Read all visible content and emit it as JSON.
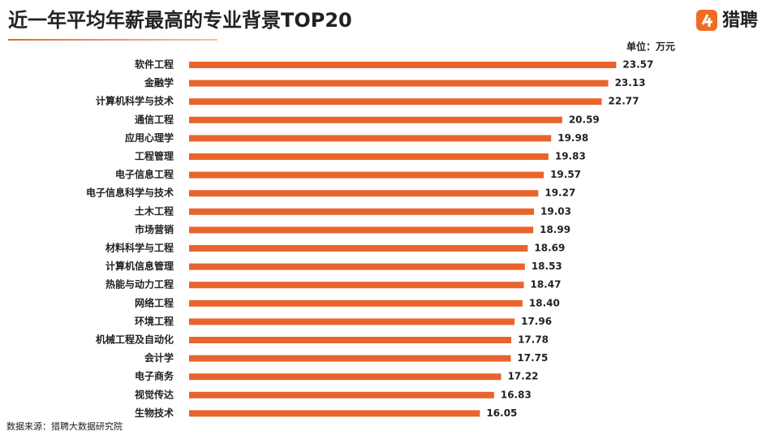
{
  "chart_data": {
    "type": "bar",
    "orientation": "horizontal",
    "title": "近一年平均年薪最高的专业背景TOP20",
    "brand": "猎聘",
    "unit": "单位：万元",
    "source": "数据来源：猎聘大数据研究院",
    "color": "#e8642c",
    "xlim": [
      0,
      24
    ],
    "categories": [
      "软件工程",
      "金融学",
      "计算机科学与技术",
      "通信工程",
      "应用心理学",
      "工程管理",
      "电子信息工程",
      "电子信息科学与技术",
      "土木工程",
      "市场营销",
      "材料科学与工程",
      "计算机信息管理",
      "热能与动力工程",
      "网络工程",
      "环境工程",
      "机械工程及自动化",
      "会计学",
      "电子商务",
      "视觉传达",
      "生物技术"
    ],
    "values": [
      23.57,
      23.13,
      22.77,
      20.59,
      19.98,
      19.83,
      19.57,
      19.27,
      19.03,
      18.99,
      18.69,
      18.53,
      18.47,
      18.4,
      17.96,
      17.78,
      17.75,
      17.22,
      16.83,
      16.05
    ],
    "value_labels": [
      "23.57",
      "23.13",
      "22.77",
      "20.59",
      "19.98",
      "19.83",
      "19.57",
      "19.27",
      "19.03",
      "18.99",
      "18.69",
      "18.53",
      "18.47",
      "18.40",
      "17.96",
      "17.78",
      "17.75",
      "17.22",
      "16.83",
      "16.05"
    ]
  }
}
